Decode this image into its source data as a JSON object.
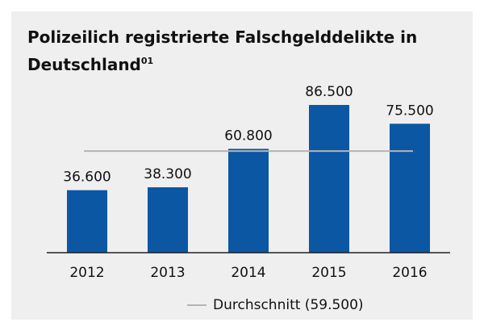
{
  "chart_data": {
    "type": "bar",
    "title": "Polizeilich registrierte Falschgelddelikte in Deutschland",
    "title_footnote": "01",
    "categories": [
      "2012",
      "2013",
      "2014",
      "2015",
      "2016"
    ],
    "values": [
      36600,
      38300,
      60800,
      86500,
      75500
    ],
    "value_labels": [
      "36.600",
      "38.300",
      "60.800",
      "86.500",
      "75.500"
    ],
    "color": "#0b57a4",
    "average": {
      "name": "Durchschnitt (59.500)",
      "value": 59500,
      "color": "#b4b4b4"
    }
  }
}
